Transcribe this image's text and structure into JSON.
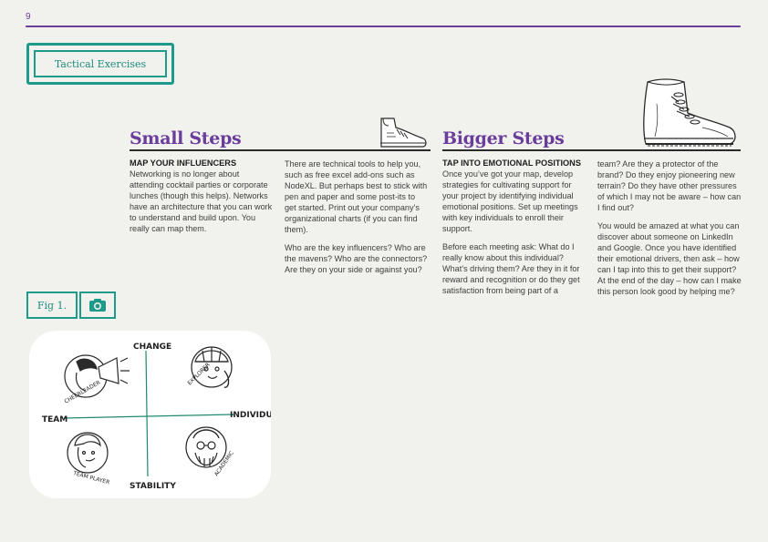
{
  "page_number": "9",
  "section_tag": "Tactical Exercises",
  "left_column": {
    "heading": "Small Steps",
    "subheading": "MAP YOUR INFLUENCERS",
    "col1_p1": "Networking is no longer about attending cocktail parties or corporate lunches (though this helps). Networks have an architecture that you can work to understand and build upon. You really can map them.",
    "col2_p1": "There are technical tools to help you, such as free excel add-ons such as NodeXL. But perhaps best to stick with pen and paper and some post-its to get started. Print out your company’s organizational charts (if you can find them).",
    "col2_p2": "Who are the key influencers? Who are the mavens? Who are the connectors? Are they on your side or against you?"
  },
  "right_column": {
    "heading": "Bigger Steps",
    "subheading": "TAP INTO EMOTIONAL POSITIONS",
    "col1_p1": "Once you’ve got your map, develop strategies for cultivating support for your project by identifying individual emotional positions. Set up meetings with key individuals to enroll their support.",
    "col1_p2": "Before each meeting ask: What do I really know about this individual? What’s driving them? Are they in it for reward and recognition or do they get satisfaction from being part of a",
    "col2_p1": "team? Are they a protector of the brand? Do they enjoy pioneering new terrain? Do they have other pressures of which I may not be aware – how can I find out?",
    "col2_p2": "You would be amazed at what you can discover about someone on LinkedIn and Google. Once you have identified their emotional drivers, then ask – how can I tap into this to get their support? At the end of the day – how can I make this person look good by helping me?"
  },
  "figure": {
    "label": "Fig 1.",
    "axis_top": "CHANGE",
    "axis_bottom": "STABILITY",
    "axis_left": "TEAM",
    "axis_right": "INDIVIDUAL",
    "quadrants": {
      "top_left": "CHEERLEADER",
      "top_right": "EXPLORER",
      "bottom_left": "TEAM PLAYER",
      "bottom_right": "ACADEMIC"
    }
  },
  "colors": {
    "accent_purple": "#6a3d9a",
    "accent_teal": "#1e9a8a"
  },
  "icons": [
    "sneaker-illustration",
    "boot-illustration",
    "camera-icon"
  ]
}
